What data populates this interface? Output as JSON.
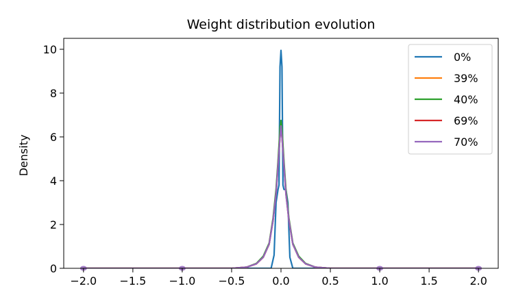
{
  "chart_data": {
    "type": "line",
    "title": "Weight distribution evolution",
    "xlabel": "",
    "ylabel": "Density",
    "xlim": [
      -2.2,
      2.2
    ],
    "ylim": [
      0,
      10.5
    ],
    "xticks": [
      -2.0,
      -1.5,
      -1.0,
      -0.5,
      0.0,
      0.5,
      1.0,
      1.5,
      2.0
    ],
    "xtick_labels": [
      "−2.0",
      "−1.5",
      "−1.0",
      "−0.5",
      "0.0",
      "0.5",
      "1.0",
      "1.5",
      "2.0"
    ],
    "yticks": [
      0,
      2,
      4,
      6,
      8,
      10
    ],
    "ytick_labels": [
      "0",
      "2",
      "4",
      "6",
      "8",
      "10"
    ],
    "grid": false,
    "legend_position": "top-right",
    "series": [
      {
        "name": "0%",
        "color": "#1f77b4",
        "x": [
          -2.0,
          -1.0,
          -0.12,
          -0.1,
          -0.07,
          -0.05,
          -0.03,
          -0.02,
          -0.01,
          0.0,
          0.01,
          0.02,
          0.03,
          0.05,
          0.07,
          0.09,
          0.12,
          1.0,
          2.0
        ],
        "y": [
          0,
          0,
          0,
          0,
          0.6,
          3.0,
          3.6,
          3.8,
          9.2,
          9.95,
          9.2,
          3.8,
          3.6,
          3.6,
          3.0,
          0.5,
          0,
          0,
          0
        ]
      },
      {
        "name": "39%",
        "color": "#ff7f0e",
        "x": [
          -2.0,
          -1.0,
          -0.5,
          -0.35,
          -0.25,
          -0.18,
          -0.12,
          -0.08,
          -0.05,
          -0.03,
          -0.01,
          0.0,
          0.01,
          0.03,
          0.05,
          0.08,
          0.12,
          0.18,
          0.25,
          0.35,
          0.5,
          1.0,
          2.0
        ],
        "y": [
          0,
          0,
          0,
          0.05,
          0.2,
          0.5,
          1.1,
          2.2,
          3.5,
          4.8,
          6.2,
          6.6,
          6.2,
          4.8,
          3.5,
          2.2,
          1.1,
          0.5,
          0.2,
          0.05,
          0,
          0,
          0
        ]
      },
      {
        "name": "40%",
        "color": "#2ca02c",
        "x": [
          -2.0,
          -1.0,
          -0.5,
          -0.35,
          -0.25,
          -0.18,
          -0.12,
          -0.08,
          -0.05,
          -0.03,
          -0.01,
          0.0,
          0.01,
          0.03,
          0.05,
          0.08,
          0.12,
          0.18,
          0.25,
          0.35,
          0.5,
          1.0,
          2.0
        ],
        "y": [
          0,
          0,
          0,
          0.05,
          0.22,
          0.55,
          1.15,
          2.3,
          3.6,
          4.9,
          6.4,
          6.75,
          6.4,
          4.9,
          3.6,
          2.3,
          1.15,
          0.55,
          0.22,
          0.05,
          0,
          0,
          0
        ]
      },
      {
        "name": "69%",
        "color": "#d62728",
        "x": [
          -2.0,
          -1.0,
          -0.5,
          -0.35,
          -0.25,
          -0.18,
          -0.12,
          -0.08,
          -0.05,
          -0.03,
          -0.01,
          0.0,
          0.01,
          0.03,
          0.05,
          0.08,
          0.12,
          0.18,
          0.25,
          0.35,
          0.5,
          1.0,
          2.0
        ],
        "y": [
          0,
          0,
          0,
          0.05,
          0.2,
          0.5,
          1.1,
          2.2,
          3.4,
          4.7,
          6.0,
          6.4,
          6.0,
          4.7,
          3.4,
          2.2,
          1.1,
          0.5,
          0.2,
          0.05,
          0,
          0,
          0
        ]
      },
      {
        "name": "70%",
        "color": "#9467bd",
        "x": [
          -2.0,
          -1.0,
          -0.5,
          -0.35,
          -0.25,
          -0.18,
          -0.12,
          -0.08,
          -0.05,
          -0.03,
          -0.01,
          0.0,
          0.01,
          0.03,
          0.05,
          0.08,
          0.12,
          0.18,
          0.25,
          0.35,
          0.5,
          1.0,
          2.0
        ],
        "y": [
          0,
          0,
          0,
          0.05,
          0.2,
          0.5,
          1.1,
          2.2,
          3.4,
          4.7,
          6.0,
          6.5,
          6.0,
          4.7,
          3.4,
          2.2,
          1.1,
          0.5,
          0.2,
          0.05,
          0,
          0,
          0
        ]
      }
    ],
    "markers": [
      {
        "x": -2.0,
        "y": 0,
        "color": "#9467bd"
      },
      {
        "x": -1.0,
        "y": 0,
        "color": "#9467bd"
      },
      {
        "x": 1.0,
        "y": 0,
        "color": "#9467bd"
      },
      {
        "x": 2.0,
        "y": 0,
        "color": "#9467bd"
      }
    ]
  }
}
